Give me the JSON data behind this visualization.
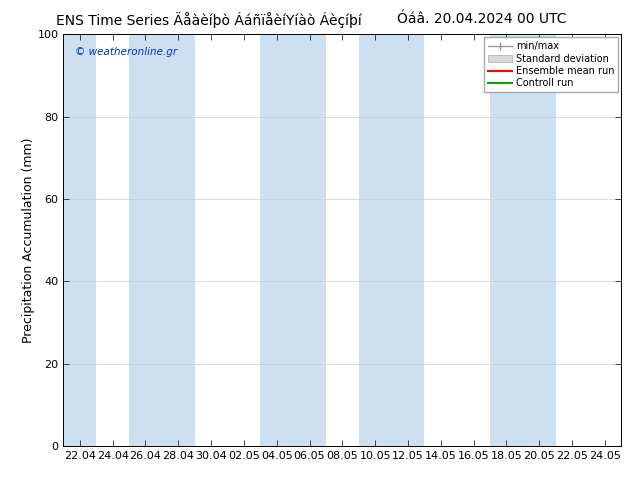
{
  "title_left": "ENS Time Series Äåàèíþò ÁáñïåèíYíàò Áèçíþí",
  "title_right": "Óáâ. 20.04.2024 00 UTC",
  "ylabel": "Precipitation Accumulation (mm)",
  "watermark": "© weatheronline.gr",
  "ylim": [
    0,
    100
  ],
  "yticks": [
    0,
    20,
    40,
    60,
    80,
    100
  ],
  "xtick_labels": [
    "22.04",
    "24.04",
    "26.04",
    "28.04",
    "30.04",
    "02.05",
    "04.05",
    "06.05",
    "08.05",
    "10.05",
    "12.05",
    "14.05",
    "16.05",
    "18.05",
    "20.05",
    "22.05",
    "24.05"
  ],
  "stripe_color": "#cce0f0",
  "bg_color": "#ffffff",
  "legend_entries": [
    "min/max",
    "Standard deviation",
    "Ensemble mean run",
    "Controll run"
  ],
  "legend_colors": [
    "#999999",
    "#cccccc",
    "#ff0000",
    "#00aa00"
  ],
  "title_fontsize": 10,
  "tick_fontsize": 8,
  "ylabel_fontsize": 9,
  "stripe_indices": [
    0,
    2,
    3,
    6,
    7,
    10,
    11,
    13,
    14
  ]
}
